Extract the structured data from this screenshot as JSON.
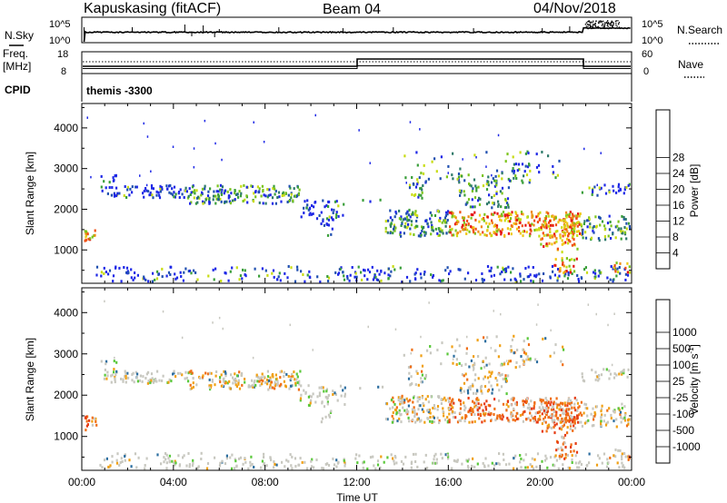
{
  "header": {
    "station": "Kapuskasing (fitACF)",
    "beam": "Beam 04",
    "date": "04/Nov/2018"
  },
  "noise_panel": {
    "left_label": "N.Sky",
    "left_ticks": [
      "10^5",
      "10^0"
    ],
    "right_ticks": [
      "10^5",
      "10^0"
    ],
    "right_label": "N.Search"
  },
  "freq_panel": {
    "left_label_line1": "Freq.",
    "left_label_line2": "[MHz]",
    "left_ticks": [
      "18",
      "8"
    ],
    "right_ticks": [
      "60",
      "0"
    ],
    "right_label": "Nave"
  },
  "cpid": {
    "label": "CPID",
    "value": "themis -3300"
  },
  "chart_data": [
    {
      "type": "heatmap",
      "name": "power",
      "xlabel": "",
      "ylabel": "Slant Range [km]",
      "xlim_hours": [
        0,
        24
      ],
      "ylim_km": [
        180,
        4600
      ],
      "y_ticks": [
        "1000",
        "2000",
        "3000",
        "4000"
      ],
      "colorbar": {
        "label": "Power [dB]",
        "ticks": [
          "4",
          "8",
          "12",
          "16",
          "20",
          "24",
          "28"
        ],
        "colors": [
          "#1e28e6",
          "#2050b0",
          "#2e7a6a",
          "#3a9e3a",
          "#7cc41c",
          "#c8dc14",
          "#f0c814",
          "#f08c14",
          "#f05014",
          "#e61414"
        ]
      }
    },
    {
      "type": "heatmap",
      "name": "velocity",
      "xlabel": "Time UT",
      "ylabel": "Slant Range [km]",
      "xlim_hours": [
        0,
        24
      ],
      "ylim_km": [
        180,
        4600
      ],
      "x_ticks": [
        "00:00",
        "04:00",
        "08:00",
        "12:00",
        "16:00",
        "20:00",
        "00:00"
      ],
      "y_ticks": [
        "1000",
        "2000",
        "3000",
        "4000"
      ],
      "colorbar": {
        "label": "Velocity [m s^-1]",
        "ticks": [
          "1000",
          "500",
          "100",
          "25",
          "-25",
          "-100",
          "-500",
          "-1000"
        ],
        "colors": [
          "#1e3cc8",
          "#2c6ea0",
          "#2a8c5a",
          "#5ac83a",
          "#c8c8c0",
          "#c8c8c0",
          "#f0a014",
          "#f06e14",
          "#e63c14",
          "#e61414"
        ]
      }
    }
  ]
}
